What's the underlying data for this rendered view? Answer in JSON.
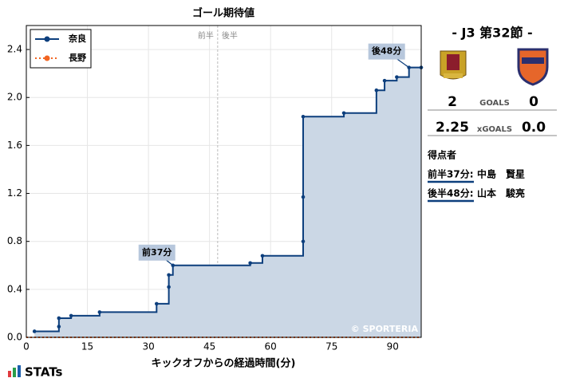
{
  "chart_data": {
    "type": "step",
    "title": "ゴール期待値",
    "x_label": "キックオフからの経過時間(分)",
    "xlim": [
      0,
      97
    ],
    "ylim": [
      0,
      2.6
    ],
    "xticks": [
      0,
      15,
      30,
      45,
      60,
      75,
      90
    ],
    "yticks": [
      {
        "value": 0,
        "label": "0.0"
      },
      {
        "value": 0.4,
        "label": "0.4"
      },
      {
        "value": 0.8,
        "label": "0.8"
      },
      {
        "value": 1.2,
        "label": "1.2"
      },
      {
        "value": 1.6,
        "label": "1.6"
      },
      {
        "value": 2.0,
        "label": "2.0"
      },
      {
        "value": 2.4,
        "label": "2.4"
      }
    ],
    "grid": true,
    "legend": "upper left",
    "series": [
      {
        "name": "奈良",
        "color": "#0d3f7d",
        "fill": "#cbd7e5",
        "x": [
          2,
          8,
          8,
          11,
          18,
          32,
          35,
          35,
          36,
          55,
          58,
          68,
          68,
          68,
          78,
          86,
          88,
          91,
          94,
          97
        ],
        "values": [
          0.05,
          0.09,
          0.16,
          0.18,
          0.21,
          0.28,
          0.42,
          0.52,
          0.6,
          0.62,
          0.68,
          0.8,
          1.17,
          1.84,
          1.87,
          2.06,
          2.14,
          2.17,
          2.25,
          2.25
        ]
      },
      {
        "name": "長野",
        "color": "#f26522",
        "x": [
          0,
          97
        ],
        "values": [
          0,
          0
        ]
      }
    ],
    "halftime": {
      "x": 47,
      "labels": [
        "前半",
        "後半"
      ]
    },
    "annotations": [
      {
        "text": "前37分",
        "x": 36,
        "y": 0.6
      },
      {
        "text": "後48分",
        "x": 94,
        "y": 2.25
      }
    ],
    "watermark": "© SPORTERIA"
  },
  "panel": {
    "match": "-  J3 第32節  -",
    "goals": {
      "home": "2",
      "label": "GOALS",
      "away": "0"
    },
    "xgoals": {
      "home": "2.25",
      "label": "xGOALS",
      "away": "0.0"
    },
    "scorers_title": "得点者",
    "scorers": [
      {
        "time": "前半37分:",
        "name": "中島　賢星"
      },
      {
        "time": "後半48分:",
        "name": "山本　駿亮"
      }
    ]
  },
  "footer": {
    "brand": "STATs"
  }
}
